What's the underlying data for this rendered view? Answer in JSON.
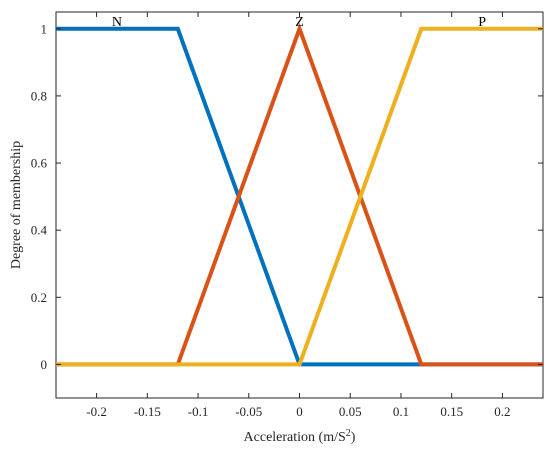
{
  "chart_data": {
    "type": "line",
    "xlabel": "Acceleration (m/S",
    "xlabel_sup": "2",
    "xlabel_tail": ")",
    "ylabel": "Degree of membership",
    "xlim": [
      -0.24,
      0.24
    ],
    "ylim": [
      -0.1,
      1.05
    ],
    "x_ticks": [
      -0.2,
      -0.15,
      -0.1,
      -0.05,
      0,
      0.05,
      0.1,
      0.15,
      0.2
    ],
    "x_tick_labels": [
      "-0.2",
      "-0.15",
      "-0.1",
      "-0.05",
      "0",
      "0.05",
      "0.1",
      "0.15",
      "0.2"
    ],
    "y_ticks": [
      0,
      0.2,
      0.4,
      0.6,
      0.8,
      1
    ],
    "y_tick_labels": [
      "0",
      "0.2",
      "0.4",
      "0.6",
      "0.8",
      "1"
    ],
    "grid": false,
    "series": [
      {
        "name": "N",
        "color": "#0072BD",
        "x": [
          -0.24,
          -0.12,
          0,
          0.24
        ],
        "y": [
          1,
          1,
          0,
          0
        ],
        "label_at": [
          -0.18,
          1.02
        ]
      },
      {
        "name": "Z",
        "color": "#D95319",
        "x": [
          -0.24,
          -0.12,
          0,
          0.12,
          0.24
        ],
        "y": [
          0,
          0,
          1,
          0,
          0
        ],
        "label_at": [
          0,
          1.02
        ]
      },
      {
        "name": "P",
        "color": "#EDB120",
        "x": [
          -0.24,
          0,
          0.12,
          0.24
        ],
        "y": [
          0,
          0,
          1,
          1
        ],
        "label_at": [
          0.18,
          1.02
        ]
      }
    ]
  }
}
